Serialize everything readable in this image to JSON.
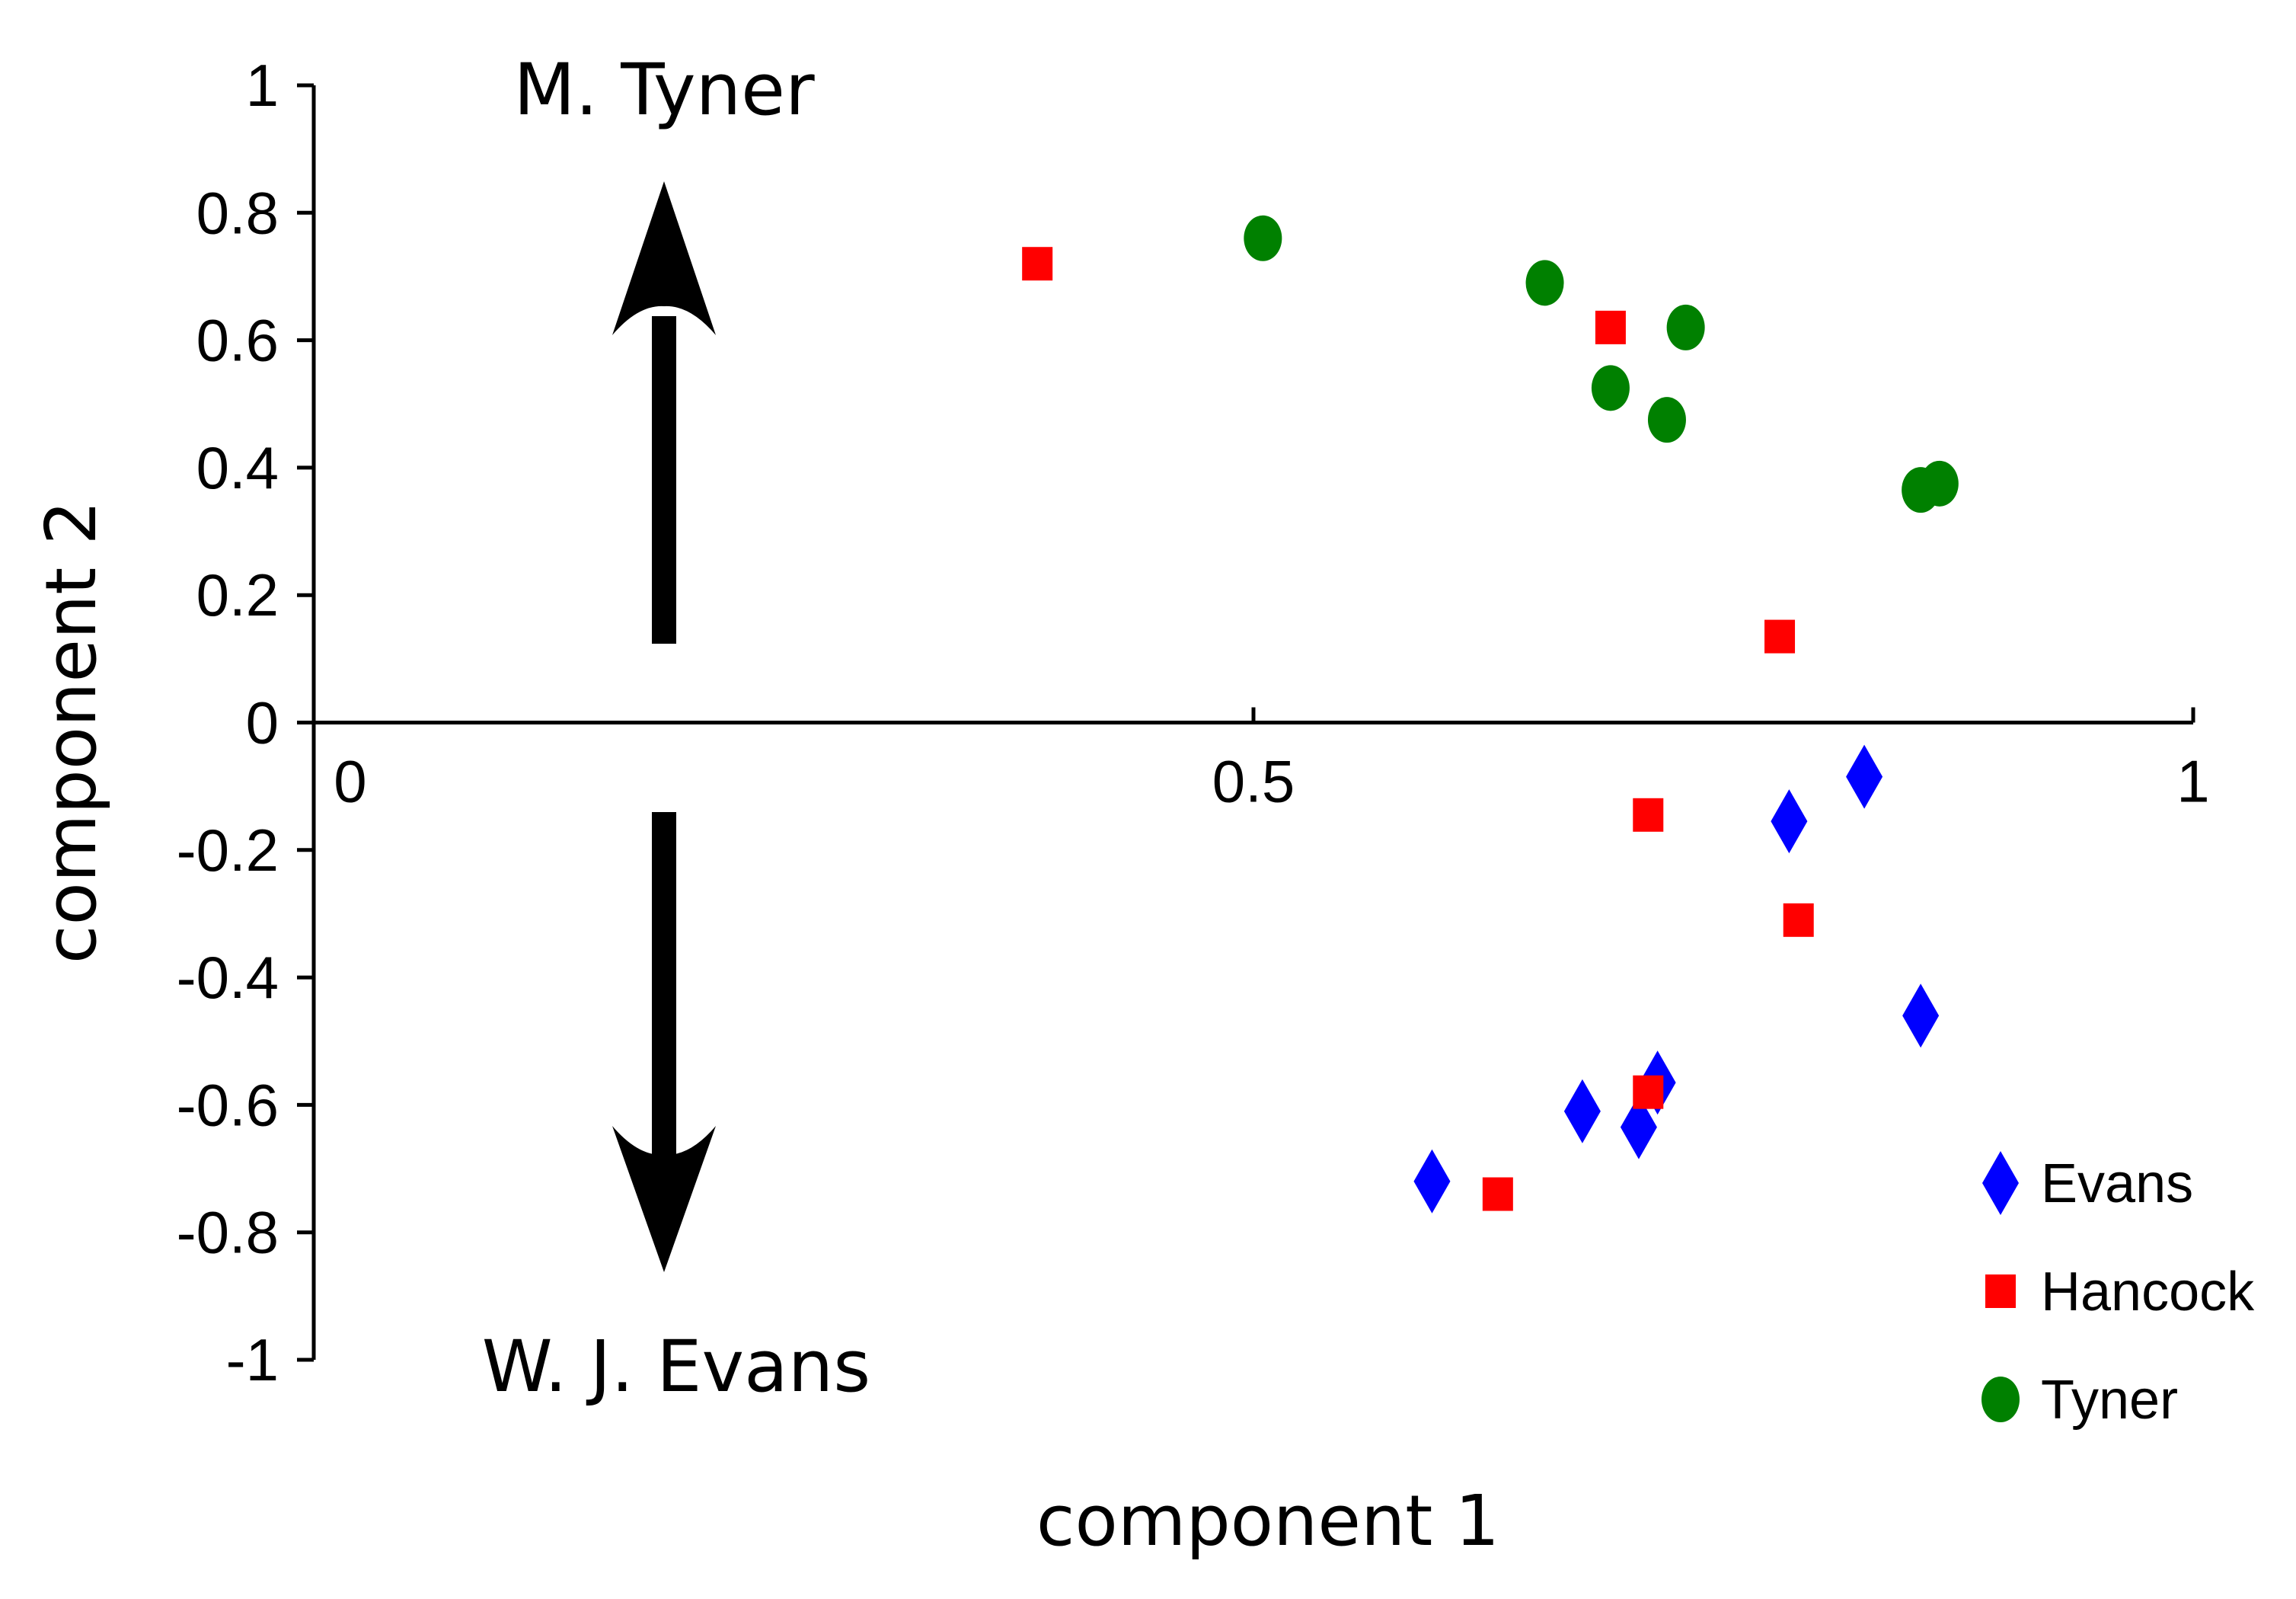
{
  "chart_data": {
    "type": "scatter",
    "xlabel": "component 1",
    "ylabel": "component 2",
    "xlim": [
      0,
      1
    ],
    "ylim": [
      -1,
      1
    ],
    "x_ticks": [
      {
        "value": 0,
        "label": "0"
      },
      {
        "value": 0.5,
        "label": "0.5"
      },
      {
        "value": 1,
        "label": "1"
      }
    ],
    "y_ticks": [
      {
        "value": 1,
        "label": "1"
      },
      {
        "value": 0.8,
        "label": "0.8"
      },
      {
        "value": 0.6,
        "label": "0.6"
      },
      {
        "value": 0.4,
        "label": "0.4"
      },
      {
        "value": 0.2,
        "label": "0.2"
      },
      {
        "value": 0,
        "label": "0"
      },
      {
        "value": -0.2,
        "label": "-0.2"
      },
      {
        "value": -0.4,
        "label": "-0.4"
      },
      {
        "value": -0.6,
        "label": "-0.6"
      },
      {
        "value": -0.8,
        "label": "-0.8"
      },
      {
        "value": -1,
        "label": "-1"
      }
    ],
    "grid": false,
    "legend_position": "bottom-right",
    "annotations": {
      "top": "M. Tyner",
      "bottom": "W. J. Evans"
    },
    "series": [
      {
        "name": "Evans",
        "marker": "diamond",
        "color": "#0000ff",
        "points": [
          {
            "x": 0.825,
            "y": -0.085
          },
          {
            "x": 0.785,
            "y": -0.155
          },
          {
            "x": 0.855,
            "y": -0.46
          },
          {
            "x": 0.715,
            "y": -0.565
          },
          {
            "x": 0.675,
            "y": -0.61
          },
          {
            "x": 0.705,
            "y": -0.635
          },
          {
            "x": 0.595,
            "y": -0.72
          }
        ]
      },
      {
        "name": "Hancock",
        "marker": "square",
        "color": "#ff0000",
        "points": [
          {
            "x": 0.385,
            "y": 0.72
          },
          {
            "x": 0.69,
            "y": 0.62
          },
          {
            "x": 0.78,
            "y": 0.135
          },
          {
            "x": 0.71,
            "y": -0.145
          },
          {
            "x": 0.79,
            "y": -0.31
          },
          {
            "x": 0.71,
            "y": -0.58
          },
          {
            "x": 0.63,
            "y": -0.74
          }
        ]
      },
      {
        "name": "Tyner",
        "marker": "circle",
        "color": "#008000",
        "points": [
          {
            "x": 0.505,
            "y": 0.76
          },
          {
            "x": 0.655,
            "y": 0.69
          },
          {
            "x": 0.73,
            "y": 0.62
          },
          {
            "x": 0.69,
            "y": 0.525
          },
          {
            "x": 0.72,
            "y": 0.475
          },
          {
            "x": 0.865,
            "y": 0.375
          },
          {
            "x": 0.855,
            "y": 0.365
          }
        ]
      }
    ]
  }
}
